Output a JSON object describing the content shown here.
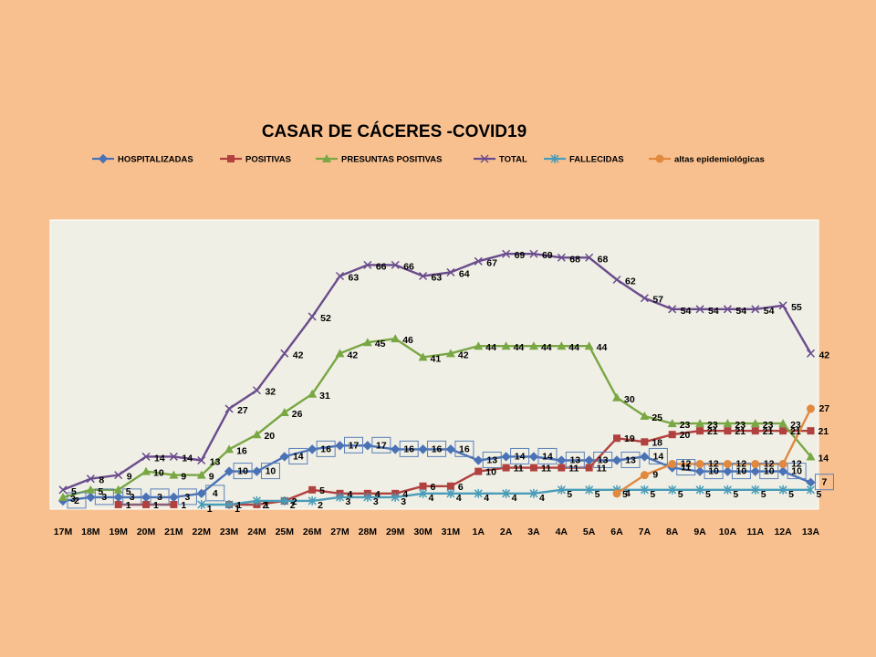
{
  "chart_data": {
    "type": "line",
    "title": "CASAR DE CÁCERES -COVID19",
    "xlabel": "",
    "ylabel": "",
    "ylim": [
      0,
      72
    ],
    "legend_position": "top",
    "grid": false,
    "categories": [
      "17M",
      "18M",
      "19M",
      "20M",
      "21M",
      "22M",
      "23M",
      "24M",
      "25M",
      "26M",
      "27M",
      "28M",
      "29M",
      "30M",
      "31M",
      "1A",
      "2A",
      "3A",
      "4A",
      "5A",
      "6A",
      "7A",
      "8A",
      "9A",
      "10A",
      "11A",
      "12A",
      "13A"
    ],
    "series": [
      {
        "name": "HOSPITALIZADAS",
        "color": "#4a72b5",
        "marker": "diamond",
        "values": [
          2,
          3,
          3,
          3,
          3,
          4,
          10,
          10,
          14,
          16,
          17,
          17,
          16,
          16,
          16,
          13,
          14,
          14,
          13,
          13,
          13,
          14,
          11,
          10,
          10,
          10,
          10,
          7
        ]
      },
      {
        "name": "POSITIVAS",
        "color": "#b0413e",
        "marker": "square",
        "values": [
          null,
          null,
          1,
          1,
          1,
          null,
          1,
          1,
          2,
          5,
          4,
          4,
          4,
          6,
          6,
          10,
          11,
          11,
          11,
          11,
          19,
          18,
          20,
          21,
          21,
          21,
          21,
          21
        ]
      },
      {
        "name": "PRESUNTAS POSITIVAS",
        "color": "#79a743",
        "marker": "triangle",
        "values": [
          3,
          5,
          5,
          10,
          9,
          9,
          16,
          20,
          26,
          31,
          42,
          45,
          46,
          41,
          42,
          44,
          44,
          44,
          44,
          44,
          30,
          25,
          23,
          23,
          23,
          23,
          23,
          14
        ]
      },
      {
        "name": "TOTAL",
        "color": "#6a4c8c",
        "marker": "x",
        "values": [
          5,
          8,
          9,
          14,
          14,
          13,
          27,
          32,
          42,
          52,
          63,
          66,
          66,
          63,
          64,
          67,
          69,
          69,
          68,
          68,
          62,
          57,
          54,
          54,
          54,
          54,
          55,
          42
        ]
      },
      {
        "name": "FALLECIDAS",
        "color": "#4a9cb8",
        "marker": "star",
        "values": [
          null,
          null,
          null,
          null,
          null,
          1,
          1,
          2,
          2,
          2,
          3,
          3,
          3,
          4,
          4,
          4,
          4,
          4,
          5,
          5,
          5,
          5,
          5,
          5,
          5,
          5,
          5,
          5
        ]
      },
      {
        "name": "altas epidemiológicas",
        "color": "#e0893f",
        "marker": "circle",
        "values": [
          null,
          null,
          null,
          null,
          null,
          null,
          null,
          null,
          null,
          null,
          null,
          null,
          null,
          null,
          null,
          null,
          null,
          null,
          null,
          null,
          4,
          9,
          12,
          12,
          12,
          12,
          12,
          27
        ]
      }
    ]
  }
}
